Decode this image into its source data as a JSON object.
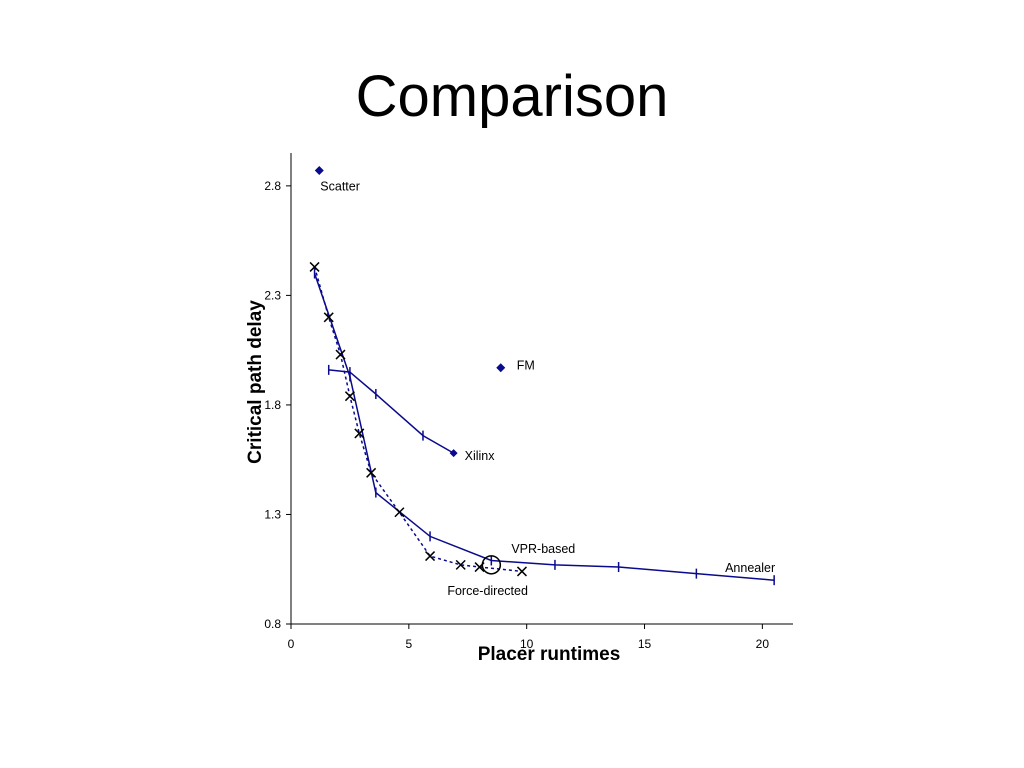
{
  "slide": {
    "title": "Comparison"
  },
  "chart_data": {
    "type": "scatter",
    "title": "",
    "xlabel": "Placer runtimes",
    "ylabel": "Critical path delay",
    "xlim": [
      0,
      21.3
    ],
    "ylim": [
      0.8,
      2.95
    ],
    "x_ticks": [
      0,
      5,
      10,
      15,
      20
    ],
    "y_ticks": [
      0.8,
      1.3,
      1.8,
      2.3,
      2.8
    ],
    "grid": false,
    "colors": {
      "line": "#0a0a8c",
      "marker": "#000000"
    },
    "series": [
      {
        "name": "Annealer",
        "style": "solid-line-tick",
        "points": [
          [
            1.0,
            2.4
          ],
          [
            2.5,
            1.93
          ],
          [
            3.6,
            1.4
          ],
          [
            5.9,
            1.2
          ],
          [
            8.5,
            1.09
          ],
          [
            11.2,
            1.07
          ],
          [
            13.9,
            1.06
          ],
          [
            17.2,
            1.03
          ],
          [
            20.5,
            1.0
          ]
        ]
      },
      {
        "name": "Xilinx",
        "style": "solid-line-tick",
        "points": [
          [
            1.6,
            1.96
          ],
          [
            2.5,
            1.95
          ],
          [
            3.6,
            1.85
          ],
          [
            5.6,
            1.66
          ],
          [
            6.9,
            1.58
          ]
        ]
      },
      {
        "name": "Force-directed",
        "style": "dashed-line-x",
        "points": [
          [
            1.0,
            2.43
          ],
          [
            1.6,
            2.2
          ],
          [
            2.1,
            2.03
          ],
          [
            2.5,
            1.84
          ],
          [
            2.9,
            1.67
          ],
          [
            3.4,
            1.49
          ],
          [
            4.6,
            1.31
          ],
          [
            5.9,
            1.11
          ],
          [
            7.2,
            1.07
          ],
          [
            8.0,
            1.06
          ],
          [
            9.8,
            1.04
          ]
        ]
      },
      {
        "name": "Scatter",
        "style": "diamond",
        "points": [
          [
            1.2,
            2.87
          ]
        ]
      },
      {
        "name": "FM",
        "style": "diamond",
        "points": [
          [
            8.9,
            1.97
          ]
        ]
      },
      {
        "name": "VPR-based",
        "style": "circle",
        "points": [
          [
            8.5,
            1.07
          ]
        ]
      }
    ],
    "annotations": [
      {
        "text": "Scatter",
        "x": 1.2,
        "y": 2.87
      },
      {
        "text": "FM",
        "x": 8.9,
        "y": 1.97
      },
      {
        "text": "Xilinx",
        "x": 6.9,
        "y": 1.58
      },
      {
        "text": "VPR-based",
        "x": 8.5,
        "y": 1.07
      },
      {
        "text": "Force-directed",
        "x": 8.5,
        "y": 1.07
      },
      {
        "text": "Annealer",
        "x": 20.5,
        "y": 1.0
      }
    ]
  }
}
